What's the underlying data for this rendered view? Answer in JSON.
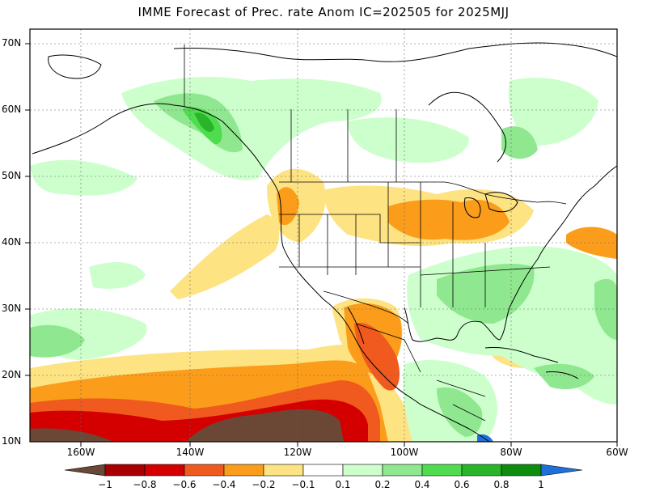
{
  "title": "IMME Forecast of Prec. rate Anom IC=202505 for 2025MJJ",
  "lat_labels": [
    "70N",
    "60N",
    "50N",
    "40N",
    "30N",
    "20N",
    "10N"
  ],
  "lon_labels": [
    "160W",
    "140W",
    "120W",
    "100W",
    "80W",
    "60W"
  ],
  "colorbar": {
    "labels": [
      "−1",
      "−0.8",
      "−0.6",
      "−0.4",
      "−0.2",
      "−0.1",
      "0.1",
      "0.2",
      "0.4",
      "0.6",
      "0.8",
      "1"
    ],
    "colors": [
      "#6b4735",
      "#a80000",
      "#d40000",
      "#f05a1e",
      "#fb9d1a",
      "#fde382",
      "#ffffff",
      "#cdffcd",
      "#8fe88f",
      "#4fdc4f",
      "#2ab42a",
      "#0e8c0e",
      "#1f70dc"
    ]
  }
}
